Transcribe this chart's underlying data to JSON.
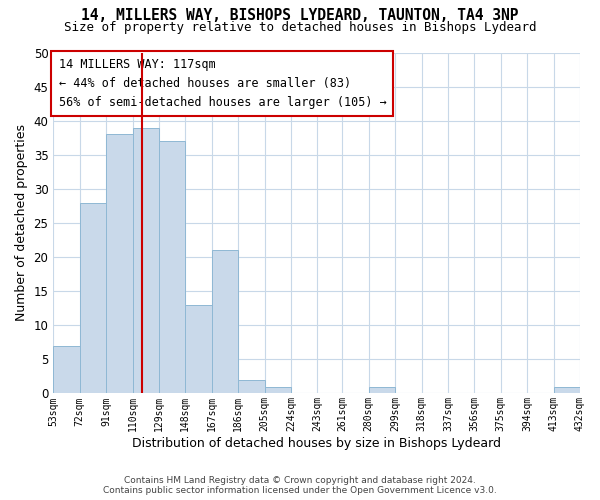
{
  "title": "14, MILLERS WAY, BISHOPS LYDEARD, TAUNTON, TA4 3NP",
  "subtitle": "Size of property relative to detached houses in Bishops Lydeard",
  "xlabel": "Distribution of detached houses by size in Bishops Lydeard",
  "ylabel": "Number of detached properties",
  "bar_edges": [
    53,
    72,
    91,
    110,
    129,
    148,
    167,
    186,
    205,
    224,
    243,
    261,
    280,
    299,
    318,
    337,
    356,
    375,
    394,
    413,
    432
  ],
  "bar_heights": [
    7,
    28,
    38,
    39,
    37,
    13,
    21,
    2,
    1,
    0,
    0,
    0,
    1,
    0,
    0,
    0,
    0,
    0,
    0,
    1
  ],
  "bar_color": "#c9d9ea",
  "bar_edge_color": "#8fb8d4",
  "vline_x": 117,
  "vline_color": "#cc0000",
  "ylim": [
    0,
    50
  ],
  "annotation_text_line1": "14 MILLERS WAY: 117sqm",
  "annotation_text_line2": "← 44% of detached houses are smaller (83)",
  "annotation_text_line3": "56% of semi-detached houses are larger (105) →",
  "footer_line1": "Contains HM Land Registry data © Crown copyright and database right 2024.",
  "footer_line2": "Contains public sector information licensed under the Open Government Licence v3.0.",
  "tick_labels": [
    "53sqm",
    "72sqm",
    "91sqm",
    "110sqm",
    "129sqm",
    "148sqm",
    "167sqm",
    "186sqm",
    "205sqm",
    "224sqm",
    "243sqm",
    "261sqm",
    "280sqm",
    "299sqm",
    "318sqm",
    "337sqm",
    "356sqm",
    "375sqm",
    "394sqm",
    "413sqm",
    "432sqm"
  ],
  "background_color": "#ffffff",
  "grid_color": "#c8d8e8"
}
